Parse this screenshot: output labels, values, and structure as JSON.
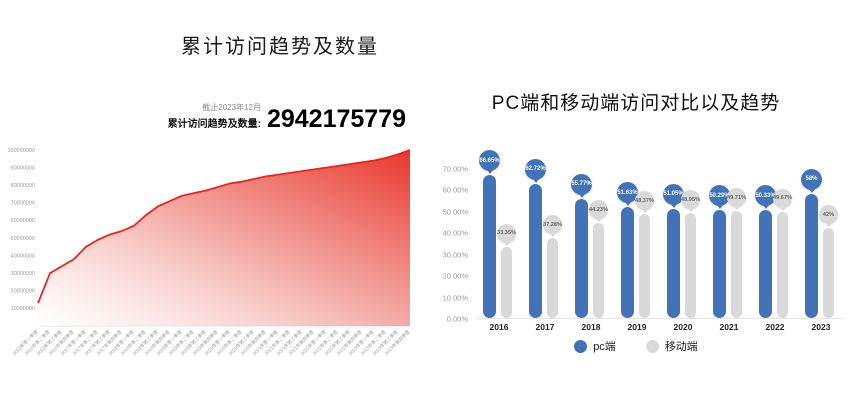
{
  "page": {
    "background": "#ffffff"
  },
  "left_chart": {
    "title": "累计访问趋势及数量",
    "note": "截止2023年12月",
    "stat_label": "累计访问趋势及数量:",
    "stat_value": "2942175779"
  },
  "right_chart": {
    "title": "PC端和移动端访问对比以及趋势",
    "legend": [
      {
        "label": "pc端",
        "color": "#4273b9"
      },
      {
        "label": "移动端",
        "color": "#d9d9d9"
      }
    ]
  },
  "chart_data": [
    {
      "type": "area",
      "title": "累计访问趋势及数量",
      "xlabel": "",
      "ylabel": "",
      "ylim": [
        0,
        100000000
      ],
      "yticks": [
        10000000,
        20000000,
        30000000,
        40000000,
        50000000,
        60000000,
        70000000,
        80000000,
        90000000,
        100000000
      ],
      "line_color": "#e8251f",
      "fill_gradient": [
        "#ffffff",
        "#f2a19c",
        "#e8362c"
      ],
      "grid": false,
      "annotation": {
        "note": "截止2023年12月",
        "label": "累计访问趋势及数量:",
        "value": "2942175779"
      },
      "x": [
        "2016年第一季度",
        "2016年第二季度",
        "2016年第三季度",
        "2016年第四季度",
        "2017年第一季度",
        "2017年第二季度",
        "2017年第三季度",
        "2017年第四季度",
        "2018年第一季度",
        "2018年第二季度",
        "2018年第三季度",
        "2018年第四季度",
        "2019年第一季度",
        "2019年第二季度",
        "2019年第三季度",
        "2019年第四季度",
        "2020年第一季度",
        "2020年第二季度",
        "2020年第三季度",
        "2020年第四季度",
        "2021年第一季度",
        "2021年第二季度",
        "2021年第三季度",
        "2021年第四季度",
        "2022年第一季度",
        "2022年第二季度",
        "2022年第三季度",
        "2022年第四季度",
        "2023年第一季度",
        "2023年第二季度",
        "2023年第三季度",
        "2023年第四季度"
      ],
      "values": [
        13000000,
        30000000,
        34000000,
        38000000,
        45000000,
        49000000,
        52000000,
        54000000,
        57000000,
        63000000,
        68000000,
        71000000,
        74000000,
        75500000,
        77000000,
        79000000,
        81000000,
        82000000,
        83500000,
        85000000,
        86000000,
        87000000,
        88000000,
        89000000,
        90000000,
        91000000,
        92000000,
        93000000,
        94000000,
        95500000,
        97500000,
        100000000
      ]
    },
    {
      "type": "bar",
      "title": "PC端和移动端访问对比以及趋势",
      "categories": [
        "2016",
        "2017",
        "2018",
        "2019",
        "2020",
        "2021",
        "2022",
        "2023"
      ],
      "ylim": [
        0,
        70
      ],
      "yticks": [
        "0.00%",
        "10.00%",
        "20.00%",
        "30.00%",
        "40.00%",
        "50.00%",
        "60.00%",
        "70.00%"
      ],
      "grid": false,
      "legend_position": "bottom",
      "series": [
        {
          "name": "pc端",
          "color": "#4273b9",
          "text_color": "#ffffff",
          "values": [
            66.65,
            62.72,
            55.77,
            51.63,
            51.05,
            50.29,
            50.33,
            58
          ],
          "labels": [
            "66.65%",
            "62.72%",
            "55.77%",
            "51.63%",
            "51.05%",
            "50.29%",
            "50.33%",
            "58%"
          ]
        },
        {
          "name": "移动端",
          "color": "#d9d9d9",
          "text_color": "#666666",
          "values": [
            33.35,
            37.28,
            44.23,
            48.37,
            48.95,
            49.71,
            49.67,
            42
          ],
          "labels": [
            "33.35%",
            "37.28%",
            "44.23%",
            "48.37%",
            "48.95%",
            "49.71%",
            "49.67%",
            "42%"
          ]
        }
      ]
    }
  ]
}
